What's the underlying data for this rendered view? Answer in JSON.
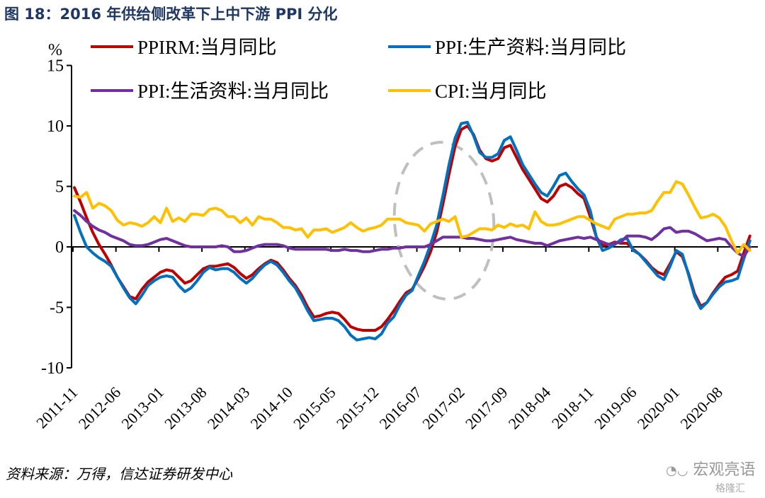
{
  "title": "图 18：2016 年供给侧改革下上中下游 PPI 分化",
  "source": "资料来源：万得，信达证券研发中心",
  "watermark": {
    "wechat": "宏观亮语",
    "site": "格隆汇"
  },
  "chart_data": {
    "type": "line",
    "title": "图 18：2016 年供给侧改革下上中下游 PPI 分化",
    "ylabel": "%",
    "ylim": [
      -10,
      15
    ],
    "yticks": [
      -10,
      -5,
      0,
      5,
      10,
      15
    ],
    "x_start": "2011-11",
    "x_end": "2021-01",
    "xtick_labels": [
      "2011-11",
      "2012-06",
      "2013-01",
      "2013-08",
      "2014-03",
      "2014-10",
      "2015-05",
      "2015-12",
      "2016-07",
      "2017-02",
      "2017-09",
      "2018-04",
      "2018-11",
      "2019-06",
      "2020-01",
      "2020-08"
    ],
    "grid": false,
    "legend": "top",
    "annotation": "gray dashed ellipse around 2016-07 to 2017-02",
    "series": [
      {
        "name": "PPIRM:当月同比",
        "color": "#c00000",
        "values": [
          4.9,
          3.7,
          2.4,
          1.2,
          0.2,
          -0.6,
          -1.5,
          -2.5,
          -3.3,
          -4.1,
          -4.3,
          -3.5,
          -2.9,
          -2.5,
          -2.1,
          -1.9,
          -2.0,
          -2.5,
          -3.0,
          -2.8,
          -2.3,
          -1.8,
          -1.6,
          -1.6,
          -1.5,
          -1.4,
          -1.7,
          -2.2,
          -2.6,
          -2.3,
          -1.8,
          -1.4,
          -1.1,
          -1.3,
          -1.9,
          -2.6,
          -3.2,
          -4.0,
          -5.0,
          -5.8,
          -5.7,
          -5.5,
          -5.4,
          -5.5,
          -6.0,
          -6.6,
          -6.8,
          -6.9,
          -6.9,
          -6.9,
          -6.6,
          -6.0,
          -5.3,
          -4.5,
          -3.8,
          -3.5,
          -2.6,
          -1.6,
          -0.4,
          1.2,
          3.5,
          6.0,
          8.3,
          9.7,
          10.0,
          9.3,
          8.0,
          7.3,
          7.1,
          7.3,
          8.2,
          8.4,
          7.4,
          6.4,
          5.6,
          4.8,
          4.0,
          3.7,
          4.2,
          5.0,
          5.2,
          4.9,
          4.4,
          4.0,
          2.5,
          0.8,
          0.1,
          0.2,
          0.4,
          0.3,
          0.3,
          -0.2,
          -0.6,
          -1.1,
          -1.7,
          -2.1,
          -2.3,
          -1.4,
          -0.4,
          -0.8,
          -2.2,
          -3.9,
          -4.9,
          -4.6,
          -3.8,
          -3.1,
          -2.5,
          -2.3,
          -2.0,
          -0.5,
          0.9
        ]
      },
      {
        "name": "PPI:生产资料:当月同比",
        "color": "#0070c0",
        "values": [
          2.6,
          1.2,
          0.0,
          -0.5,
          -0.9,
          -1.2,
          -1.6,
          -2.5,
          -3.4,
          -4.2,
          -4.7,
          -4.0,
          -3.2,
          -2.8,
          -2.5,
          -2.4,
          -2.5,
          -3.2,
          -3.7,
          -3.4,
          -2.8,
          -2.1,
          -1.7,
          -1.9,
          -1.8,
          -1.8,
          -2.1,
          -2.6,
          -3.0,
          -2.6,
          -2.0,
          -1.5,
          -1.2,
          -1.5,
          -2.1,
          -2.8,
          -3.4,
          -4.3,
          -5.3,
          -6.1,
          -6.0,
          -5.9,
          -5.9,
          -6.1,
          -6.6,
          -7.3,
          -7.7,
          -7.6,
          -7.5,
          -7.6,
          -7.2,
          -6.3,
          -5.8,
          -4.8,
          -4.0,
          -3.6,
          -2.4,
          -1.2,
          0.2,
          1.8,
          4.2,
          6.8,
          9.0,
          10.2,
          10.3,
          9.2,
          7.8,
          7.4,
          7.4,
          7.7,
          8.8,
          9.1,
          8.0,
          6.8,
          6.0,
          5.2,
          4.5,
          4.2,
          5.0,
          5.9,
          6.1,
          5.4,
          4.8,
          4.3,
          3.0,
          0.8,
          -0.3,
          -0.1,
          0.2,
          0.6,
          0.7,
          -0.3,
          -0.6,
          -1.2,
          -1.8,
          -2.4,
          -2.7,
          -1.6,
          -0.3,
          -0.6,
          -2.3,
          -4.1,
          -5.1,
          -4.6,
          -3.9,
          -3.3,
          -2.9,
          -2.8,
          -2.6,
          -1.0,
          0.5
        ]
      },
      {
        "name": "PPI:生活资料:当月同比",
        "color": "#7030a0",
        "values": [
          3.0,
          2.6,
          2.1,
          1.7,
          1.4,
          1.2,
          0.9,
          0.7,
          0.5,
          0.2,
          0.1,
          0.1,
          0.2,
          0.4,
          0.6,
          0.7,
          0.5,
          0.3,
          0.1,
          0.0,
          0.0,
          0.0,
          0.0,
          0.0,
          0.1,
          0.0,
          -0.4,
          -0.4,
          -0.3,
          -0.1,
          0.1,
          0.2,
          0.2,
          0.2,
          0.1,
          -0.1,
          -0.2,
          -0.2,
          -0.2,
          -0.2,
          -0.2,
          -0.2,
          -0.3,
          -0.3,
          -0.2,
          -0.3,
          -0.3,
          -0.4,
          -0.4,
          -0.3,
          -0.2,
          -0.2,
          -0.1,
          -0.1,
          0.0,
          0.0,
          0.0,
          0.0,
          0.2,
          0.5,
          0.8,
          0.8,
          0.8,
          0.8,
          0.7,
          0.7,
          0.6,
          0.5,
          0.5,
          0.6,
          0.7,
          0.8,
          0.6,
          0.5,
          0.4,
          0.3,
          0.3,
          0.1,
          0.3,
          0.5,
          0.6,
          0.7,
          0.8,
          0.7,
          0.8,
          0.6,
          0.4,
          0.2,
          0.3,
          0.4,
          0.9,
          0.9,
          0.9,
          0.8,
          0.6,
          1.0,
          1.5,
          1.6,
          1.2,
          1.3,
          1.3,
          1.1,
          0.8,
          0.5,
          0.6,
          0.7,
          0.6,
          0.0,
          -0.5,
          -0.8,
          0.0
        ]
      },
      {
        "name": "CPI:当月同比",
        "color": "#ffc000",
        "values": [
          4.2,
          4.1,
          4.5,
          3.2,
          3.6,
          3.4,
          3.0,
          2.2,
          1.8,
          2.0,
          1.9,
          1.7,
          2.0,
          2.5,
          2.0,
          3.2,
          2.1,
          2.4,
          2.1,
          2.7,
          2.7,
          2.6,
          3.1,
          3.2,
          3.0,
          2.5,
          2.5,
          2.0,
          2.4,
          1.8,
          2.5,
          2.3,
          2.3,
          2.0,
          1.6,
          1.6,
          1.4,
          1.5,
          0.8,
          1.4,
          1.4,
          1.5,
          1.2,
          1.4,
          1.6,
          2.0,
          1.6,
          1.3,
          1.5,
          1.6,
          1.8,
          2.3,
          2.3,
          2.3,
          2.0,
          1.9,
          1.8,
          1.3,
          1.9,
          2.1,
          2.3,
          2.1,
          2.5,
          0.8,
          0.9,
          1.2,
          1.5,
          1.5,
          1.4,
          1.8,
          1.6,
          1.9,
          1.7,
          1.8,
          1.5,
          2.9,
          2.1,
          1.8,
          1.8,
          1.9,
          2.1,
          2.3,
          2.5,
          2.5,
          2.2,
          1.9,
          1.7,
          1.5,
          2.3,
          2.5,
          2.7,
          2.7,
          2.8,
          2.8,
          3.0,
          3.8,
          4.5,
          4.5,
          5.4,
          5.2,
          4.3,
          3.3,
          2.4,
          2.5,
          2.7,
          2.4,
          1.7,
          0.5,
          -0.5,
          0.2,
          -0.3
        ]
      }
    ]
  }
}
